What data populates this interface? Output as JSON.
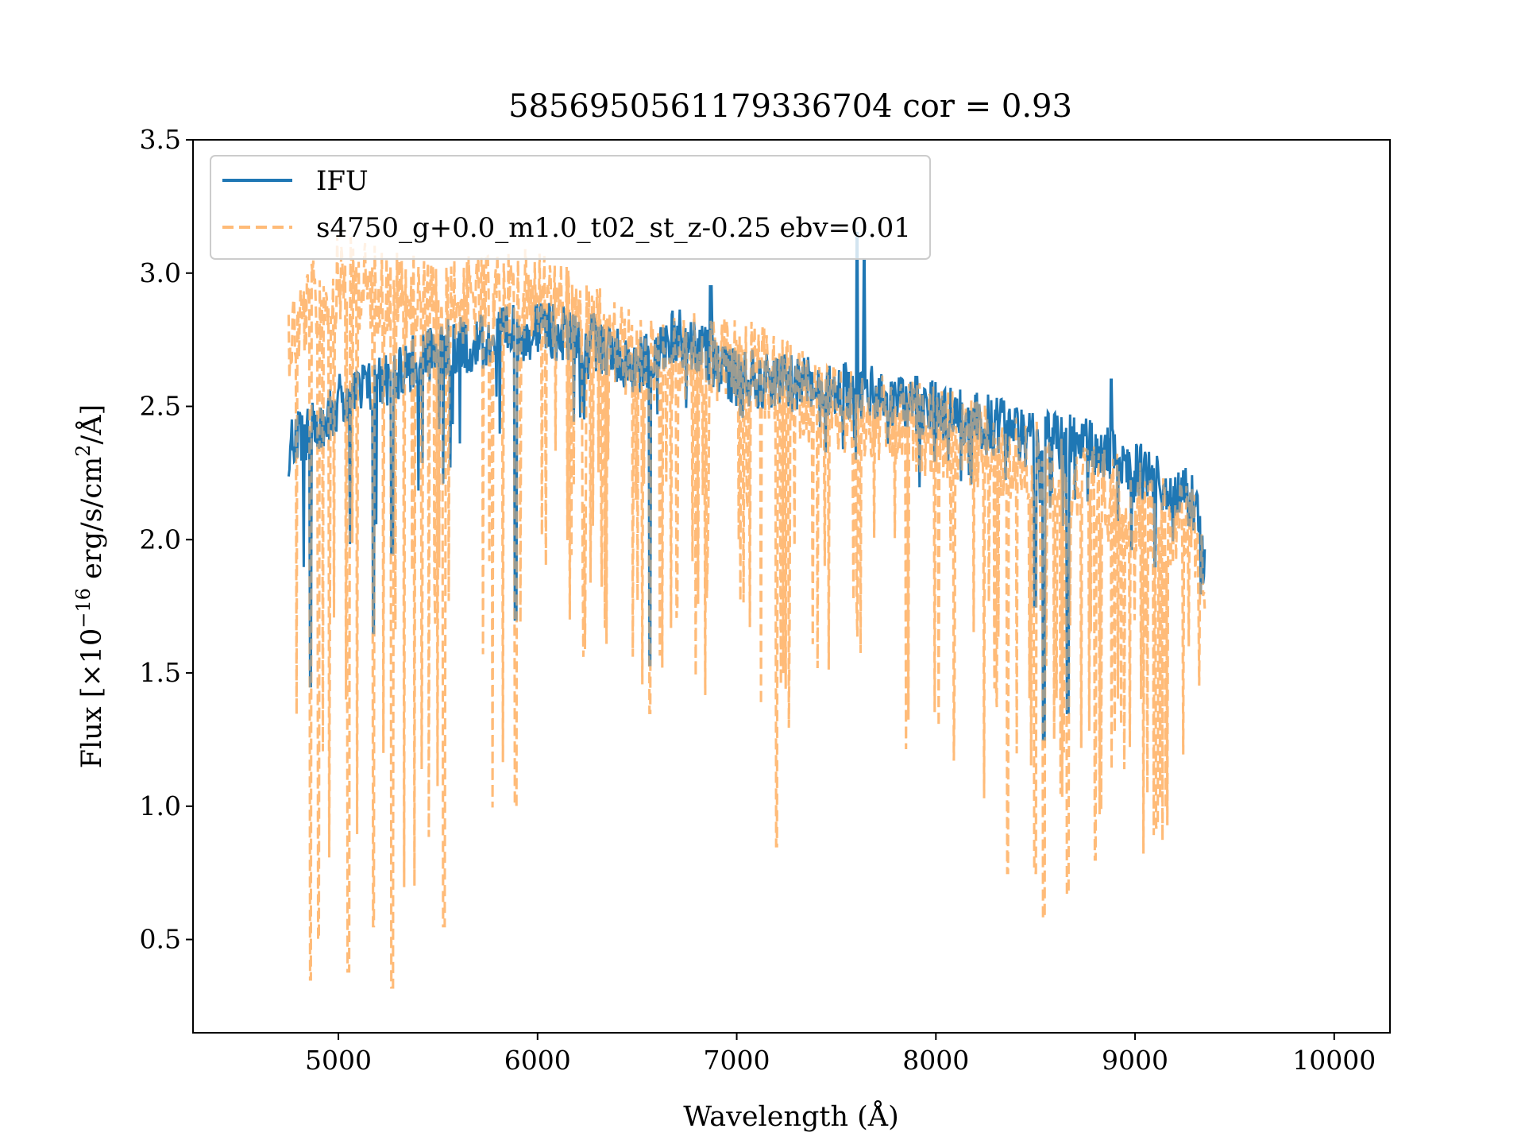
{
  "chart_data": {
    "type": "line",
    "title": "5856950561179336704 cor = 0.93",
    "xlabel": "Wavelength (Å)",
    "ylabel_parts": {
      "pre": "Flux [×10",
      "exp1": "−16",
      "mid": " erg/s/cm",
      "exp2": "2",
      "post": "/Å]"
    },
    "xlim": [
      4270,
      10280
    ],
    "ylim": [
      0.15,
      3.5
    ],
    "xticks": [
      5000,
      6000,
      7000,
      8000,
      9000,
      10000
    ],
    "xtick_labels": [
      "5000",
      "6000",
      "7000",
      "8000",
      "9000",
      "10000"
    ],
    "yticks": [
      0.5,
      1.0,
      1.5,
      2.0,
      2.5,
      3.0,
      3.5
    ],
    "ytick_labels": [
      "0.5",
      "1.0",
      "1.5",
      "2.0",
      "2.5",
      "3.0",
      "3.5"
    ],
    "grid": false,
    "legend_position": "top-left",
    "series": [
      {
        "name": "IFU",
        "color": "#1f77b4",
        "style": "solid",
        "x_range": [
          4750,
          9350
        ],
        "continuum": [
          [
            4750,
            2.45
          ],
          [
            5000,
            2.62
          ],
          [
            5500,
            2.82
          ],
          [
            6000,
            2.9
          ],
          [
            6300,
            2.85
          ],
          [
            6500,
            2.75
          ],
          [
            6700,
            2.88
          ],
          [
            7000,
            2.72
          ],
          [
            7500,
            2.68
          ],
          [
            8000,
            2.6
          ],
          [
            8500,
            2.5
          ],
          [
            8800,
            2.45
          ],
          [
            9000,
            2.38
          ],
          [
            9300,
            2.25
          ],
          [
            9350,
            2.0
          ]
        ],
        "absorption_lines": [
          [
            4861,
            1.45
          ],
          [
            5175,
            1.65
          ],
          [
            5270,
            1.95
          ],
          [
            5890,
            1.7
          ],
          [
            6563,
            1.53
          ],
          [
            7600,
            2.3
          ],
          [
            8498,
            1.75
          ],
          [
            8542,
            1.25
          ],
          [
            8662,
            1.35
          ],
          [
            9100,
            1.9
          ]
        ],
        "emission_features": [
          [
            7605,
            3.15
          ],
          [
            7640,
            3.05
          ],
          [
            8880,
            2.6
          ],
          [
            6870,
            2.95
          ]
        ]
      },
      {
        "name": "s4750_g+0.0_m1.0_t02_st_z-0.25 ebv=0.01",
        "color": "#ffbb78",
        "style": "dashed",
        "x_range": [
          4750,
          9350
        ],
        "continuum": [
          [
            4750,
            2.95
          ],
          [
            5000,
            3.15
          ],
          [
            5500,
            3.05
          ],
          [
            6000,
            3.1
          ],
          [
            6300,
            2.95
          ],
          [
            6500,
            2.85
          ],
          [
            7000,
            2.85
          ],
          [
            7500,
            2.65
          ],
          [
            8000,
            2.58
          ],
          [
            8500,
            2.45
          ],
          [
            9000,
            2.3
          ],
          [
            9300,
            2.2
          ],
          [
            9350,
            2.0
          ]
        ],
        "absorption_lines": [
          [
            4861,
            0.35
          ],
          [
            4900,
            0.5
          ],
          [
            5050,
            0.38
          ],
          [
            5175,
            0.55
          ],
          [
            5270,
            0.32
          ],
          [
            5530,
            0.55
          ],
          [
            5890,
            1.0
          ],
          [
            6563,
            1.35
          ],
          [
            7200,
            0.85
          ],
          [
            8360,
            0.75
          ],
          [
            8498,
            0.75
          ],
          [
            8542,
            0.58
          ],
          [
            8662,
            0.67
          ],
          [
            8800,
            0.8
          ],
          [
            9110,
            0.92
          ]
        ]
      }
    ]
  }
}
